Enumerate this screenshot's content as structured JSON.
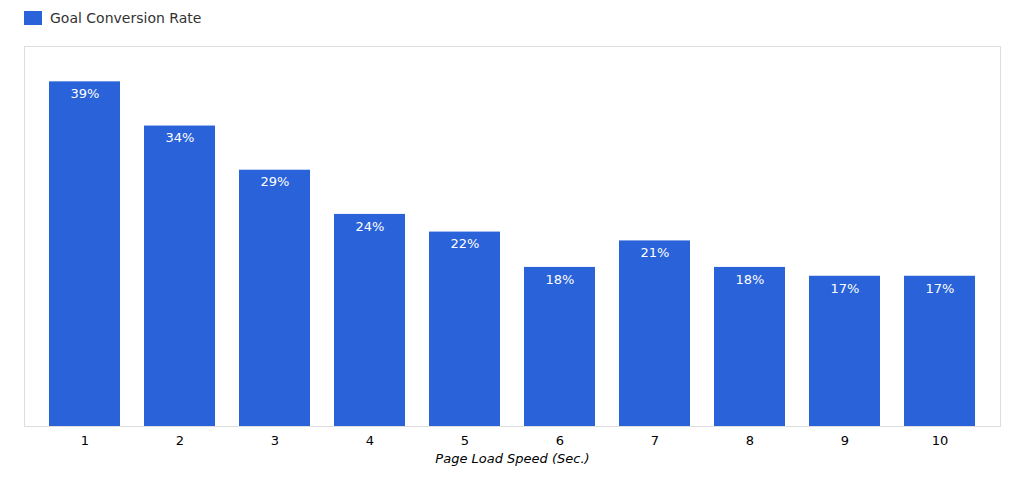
{
  "chart_data": {
    "type": "bar",
    "categories": [
      1,
      2,
      3,
      4,
      5,
      6,
      7,
      8,
      9,
      10
    ],
    "series": [
      {
        "name": "Goal Conversion Rate",
        "color": "#2962D9",
        "values": [
          39,
          34,
          29,
          24,
          22,
          18,
          21,
          18,
          17,
          17
        ],
        "value_labels": [
          "39%",
          "34%",
          "29%",
          "24%",
          "22%",
          "18%",
          "21%",
          "18%",
          "17%",
          "17%"
        ]
      }
    ],
    "xlabel": "Page Load Speed (Sec.)",
    "ylim": [
      0,
      43
    ],
    "grid": false,
    "legend": "upper left",
    "data_labels": true,
    "tick_labels": "x"
  }
}
